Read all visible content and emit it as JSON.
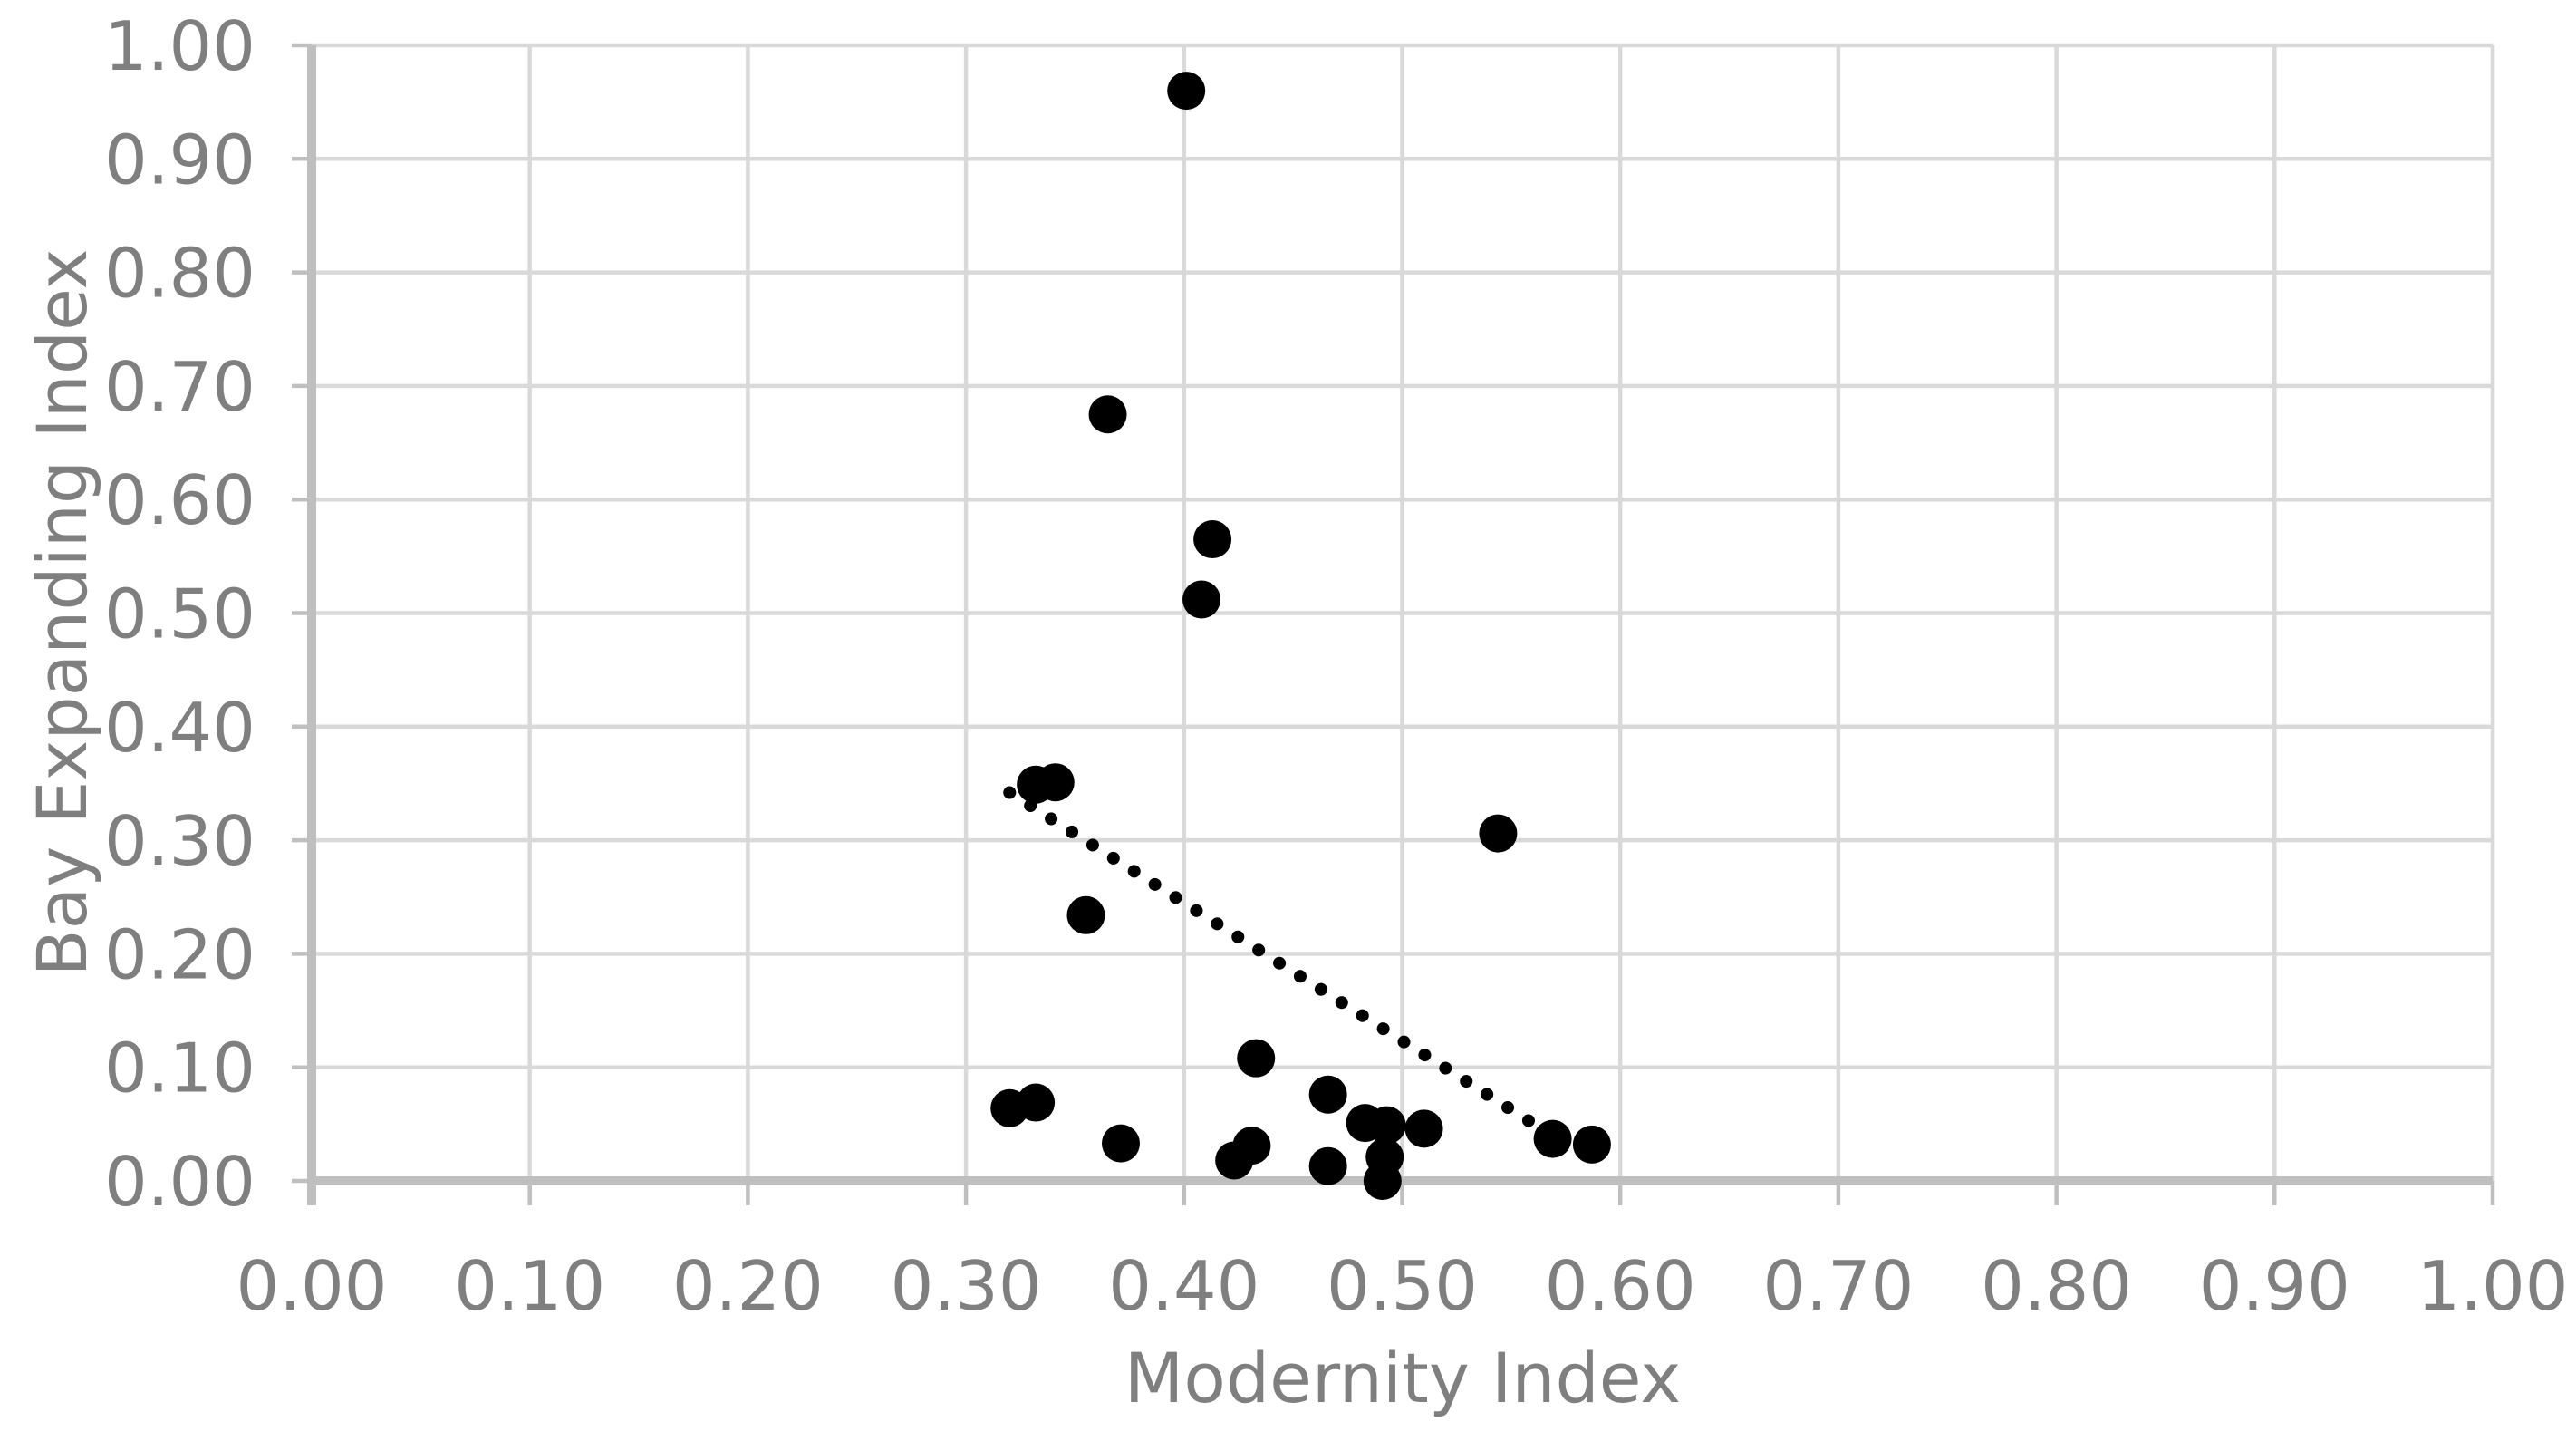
{
  "chart_data": {
    "type": "scatter",
    "title": "",
    "xlabel": "Modernity Index",
    "ylabel": "Bay Expanding Index",
    "xlim": [
      0.0,
      1.0
    ],
    "ylim": [
      0.0,
      1.0
    ],
    "grid": true,
    "legend_position": "none",
    "x_ticks": [
      "0.00",
      "0.10",
      "0.20",
      "0.30",
      "0.40",
      "0.50",
      "0.60",
      "0.70",
      "0.80",
      "0.90",
      "1.00"
    ],
    "y_ticks": [
      "0.00",
      "0.10",
      "0.20",
      "0.30",
      "0.40",
      "0.50",
      "0.60",
      "0.70",
      "0.80",
      "0.90",
      "1.00"
    ],
    "points": [
      [
        0.401,
        0.96
      ],
      [
        0.365,
        0.675
      ],
      [
        0.413,
        0.565
      ],
      [
        0.408,
        0.512
      ],
      [
        0.332,
        0.349
      ],
      [
        0.341,
        0.351
      ],
      [
        0.355,
        0.234
      ],
      [
        0.544,
        0.306
      ],
      [
        0.433,
        0.108
      ],
      [
        0.32,
        0.064
      ],
      [
        0.332,
        0.069
      ],
      [
        0.371,
        0.033
      ],
      [
        0.423,
        0.018
      ],
      [
        0.431,
        0.031
      ],
      [
        0.466,
        0.076
      ],
      [
        0.466,
        0.013
      ],
      [
        0.483,
        0.051
      ],
      [
        0.493,
        0.049
      ],
      [
        0.492,
        0.021
      ],
      [
        0.491,
        0.0
      ],
      [
        0.51,
        0.046
      ],
      [
        0.569,
        0.037
      ],
      [
        0.587,
        0.032
      ]
    ],
    "trendline": {
      "style": "dotted",
      "x1": 0.32,
      "y1": 0.342,
      "x2": 0.558,
      "y2": 0.053
    },
    "colors": {
      "point": "#000000",
      "trendline": "#000000",
      "gridline": "#D9D9D9",
      "axis_line": "#BFBFBF",
      "label_text": "#7F7F7F",
      "background": "#FFFFFF"
    }
  }
}
